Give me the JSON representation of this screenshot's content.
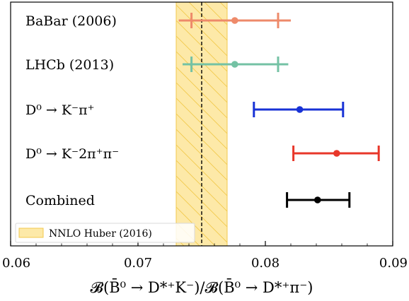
{
  "chart_data": {
    "type": "scatter",
    "orientation": "horizontal-errorbar",
    "xlim": [
      0.06,
      0.09
    ],
    "xticks": [
      "0.06",
      "0.07",
      "0.08",
      "0.09"
    ],
    "xlabel": "𝓑(B̄⁰ → D*⁺K⁻)/𝓑(B̄⁰ → D*⁺π⁻)",
    "grid": false,
    "legend_position": "bottom-left",
    "band": {
      "name": "NNLO Huber (2016)",
      "center": 0.075,
      "low": 0.073,
      "high": 0.077,
      "color": "#fde9a8",
      "edge_color": "#f2c94c"
    },
    "measurements": [
      {
        "label": "BaBar (2006)",
        "value": 0.0776,
        "stat": [
          0.0742,
          0.081
        ],
        "total": [
          0.0732,
          0.082
        ],
        "color": "#ee8a6a"
      },
      {
        "label": "LHCb (2013)",
        "value": 0.0776,
        "stat": [
          0.0742,
          0.081
        ],
        "total": [
          0.0735,
          0.0818
        ],
        "color": "#74c2a4"
      },
      {
        "label": "D⁰ → K⁻π⁺",
        "value": 0.0827,
        "stat": [
          0.0791,
          0.0861
        ],
        "total": [
          0.0791,
          0.0861
        ],
        "color": "#1832d6"
      },
      {
        "label": "D⁰ → K⁻2π⁺π⁻",
        "value": 0.0856,
        "stat": [
          0.0822,
          0.0889
        ],
        "total": [
          0.0822,
          0.0889
        ],
        "color": "#e8372a"
      },
      {
        "label": "Combined",
        "value": 0.0841,
        "stat": [
          0.0817,
          0.0866
        ],
        "total": [
          0.0817,
          0.0866
        ],
        "color": "#000000"
      }
    ]
  }
}
